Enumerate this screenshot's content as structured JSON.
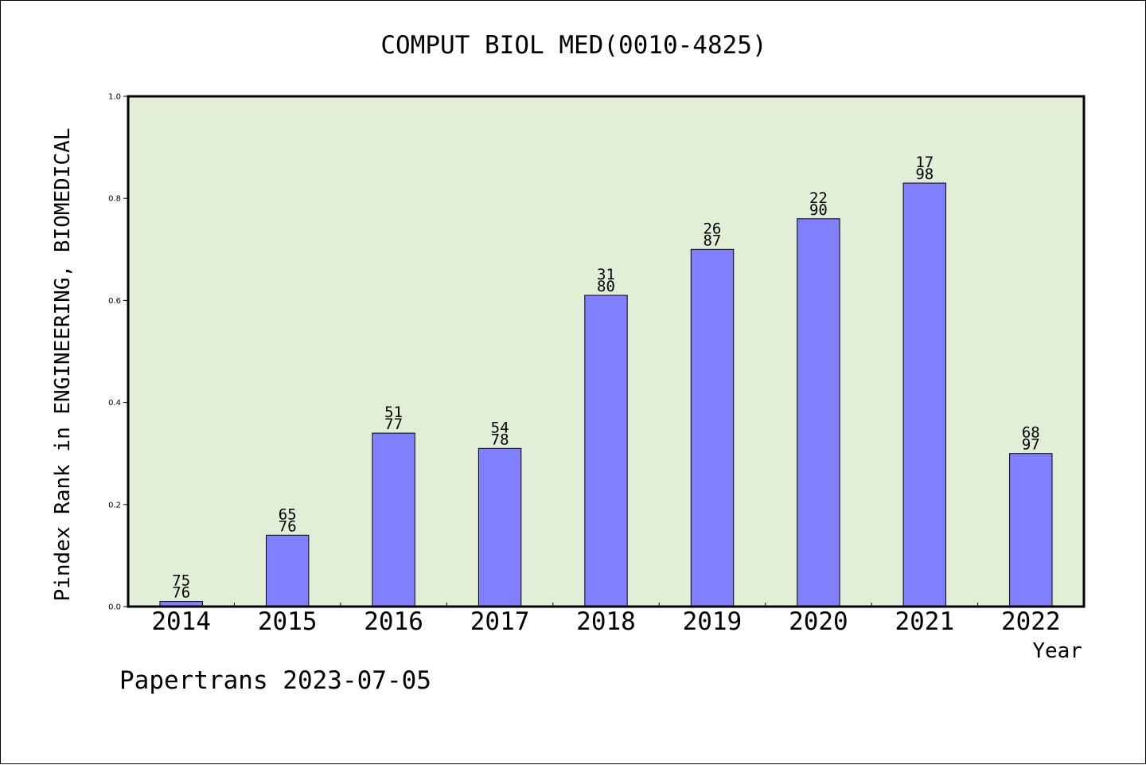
{
  "chart_data": {
    "type": "bar",
    "title": "COMPUT BIOL MED(0010-4825)",
    "xlabel": "Year",
    "ylabel": "Pindex Rank in ENGINEERING, BIOMEDICAL",
    "categories": [
      "2014",
      "2015",
      "2016",
      "2017",
      "2018",
      "2019",
      "2020",
      "2021",
      "2022"
    ],
    "values": [
      0.01,
      0.14,
      0.34,
      0.31,
      0.61,
      0.7,
      0.76,
      0.83,
      0.3
    ],
    "bar_labels": [
      {
        "rank": "75",
        "total": "76"
      },
      {
        "rank": "65",
        "total": "76"
      },
      {
        "rank": "51",
        "total": "77"
      },
      {
        "rank": "54",
        "total": "78"
      },
      {
        "rank": "31",
        "total": "80"
      },
      {
        "rank": "26",
        "total": "87"
      },
      {
        "rank": "22",
        "total": "90"
      },
      {
        "rank": "17",
        "total": "98"
      },
      {
        "rank": "68",
        "total": "97"
      }
    ],
    "ylim": [
      0,
      1.0
    ],
    "yticks": [
      "0.0",
      "0.2",
      "0.4",
      "0.6",
      "0.8",
      "1.0"
    ],
    "grid": false,
    "legend": "none",
    "colors": {
      "plot_background": "#e2efd6",
      "bar_fill": "#8080ff",
      "bar_stroke": "#000000"
    }
  },
  "footer": {
    "text": "Papertrans 2023-07-05"
  }
}
